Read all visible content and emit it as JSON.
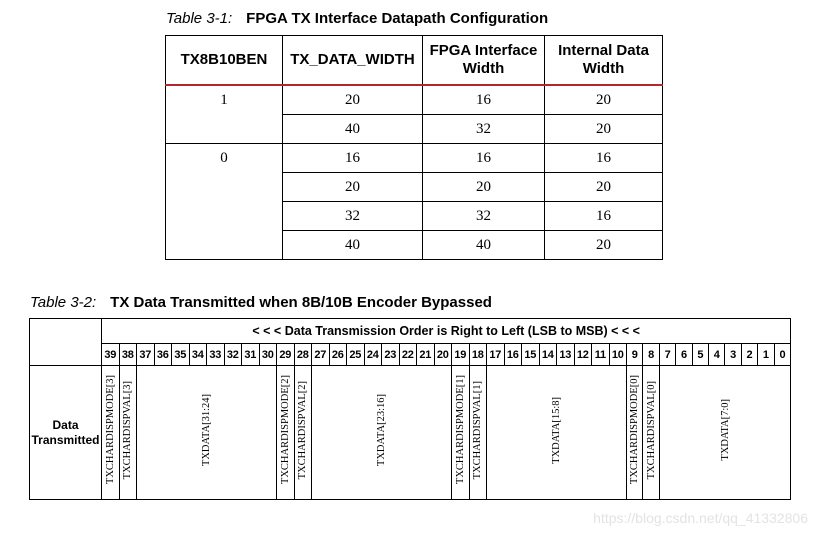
{
  "table1": {
    "caption_label": "Table 3-1:",
    "caption_title": "FPGA TX Interface Datapath Configuration",
    "headers": [
      "TX8B10BEN",
      "TX_DATA_WIDTH",
      "FPGA Interface Width",
      "Internal Data Width"
    ],
    "groups": [
      {
        "tx8b10ben": "1",
        "rows": [
          [
            "20",
            "16",
            "20"
          ],
          [
            "40",
            "32",
            "20"
          ]
        ]
      },
      {
        "tx8b10ben": "0",
        "rows": [
          [
            "16",
            "16",
            "16"
          ],
          [
            "20",
            "20",
            "20"
          ],
          [
            "32",
            "32",
            "16"
          ],
          [
            "40",
            "40",
            "20"
          ]
        ]
      }
    ]
  },
  "table2": {
    "caption_label": "Table 3-2:",
    "caption_title": "TX Data Transmitted when 8B/10B Encoder Bypassed",
    "order_text": "< < < Data Transmission Order is Right to Left (LSB to MSB) < < <",
    "bits": [
      "39",
      "38",
      "37",
      "36",
      "35",
      "34",
      "33",
      "32",
      "31",
      "30",
      "29",
      "28",
      "27",
      "26",
      "25",
      "24",
      "23",
      "22",
      "21",
      "20",
      "19",
      "18",
      "17",
      "16",
      "15",
      "14",
      "13",
      "12",
      "11",
      "10",
      "9",
      "8",
      "7",
      "6",
      "5",
      "4",
      "3",
      "2",
      "1",
      "0"
    ],
    "row_header_line1": "Data",
    "row_header_line2": "Transmitted",
    "cells": [
      {
        "label": "TXCHARDISPMODE[3]",
        "span": 1
      },
      {
        "label": "TXCHARDISPVAL[3]",
        "span": 1
      },
      {
        "label": "TXDATA[31:24]",
        "span": 8
      },
      {
        "label": "TXCHARDISPMODE[2]",
        "span": 1
      },
      {
        "label": "TXCHARDISPVAL[2]",
        "span": 1
      },
      {
        "label": "TXDATA[23:16]",
        "span": 8
      },
      {
        "label": "TXCHARDISPMODE[1]",
        "span": 1
      },
      {
        "label": "TXCHARDISPVAL[1]",
        "span": 1
      },
      {
        "label": "TXDATA[15:8]",
        "span": 8
      },
      {
        "label": "TXCHARDISPMODE[0]",
        "span": 1
      },
      {
        "label": "TXCHARDISPVAL[0]",
        "span": 1
      },
      {
        "label": "TXDATA[7:0]",
        "span": 8
      }
    ]
  },
  "watermark": "https://blog.csdn.net/qq_41332806"
}
